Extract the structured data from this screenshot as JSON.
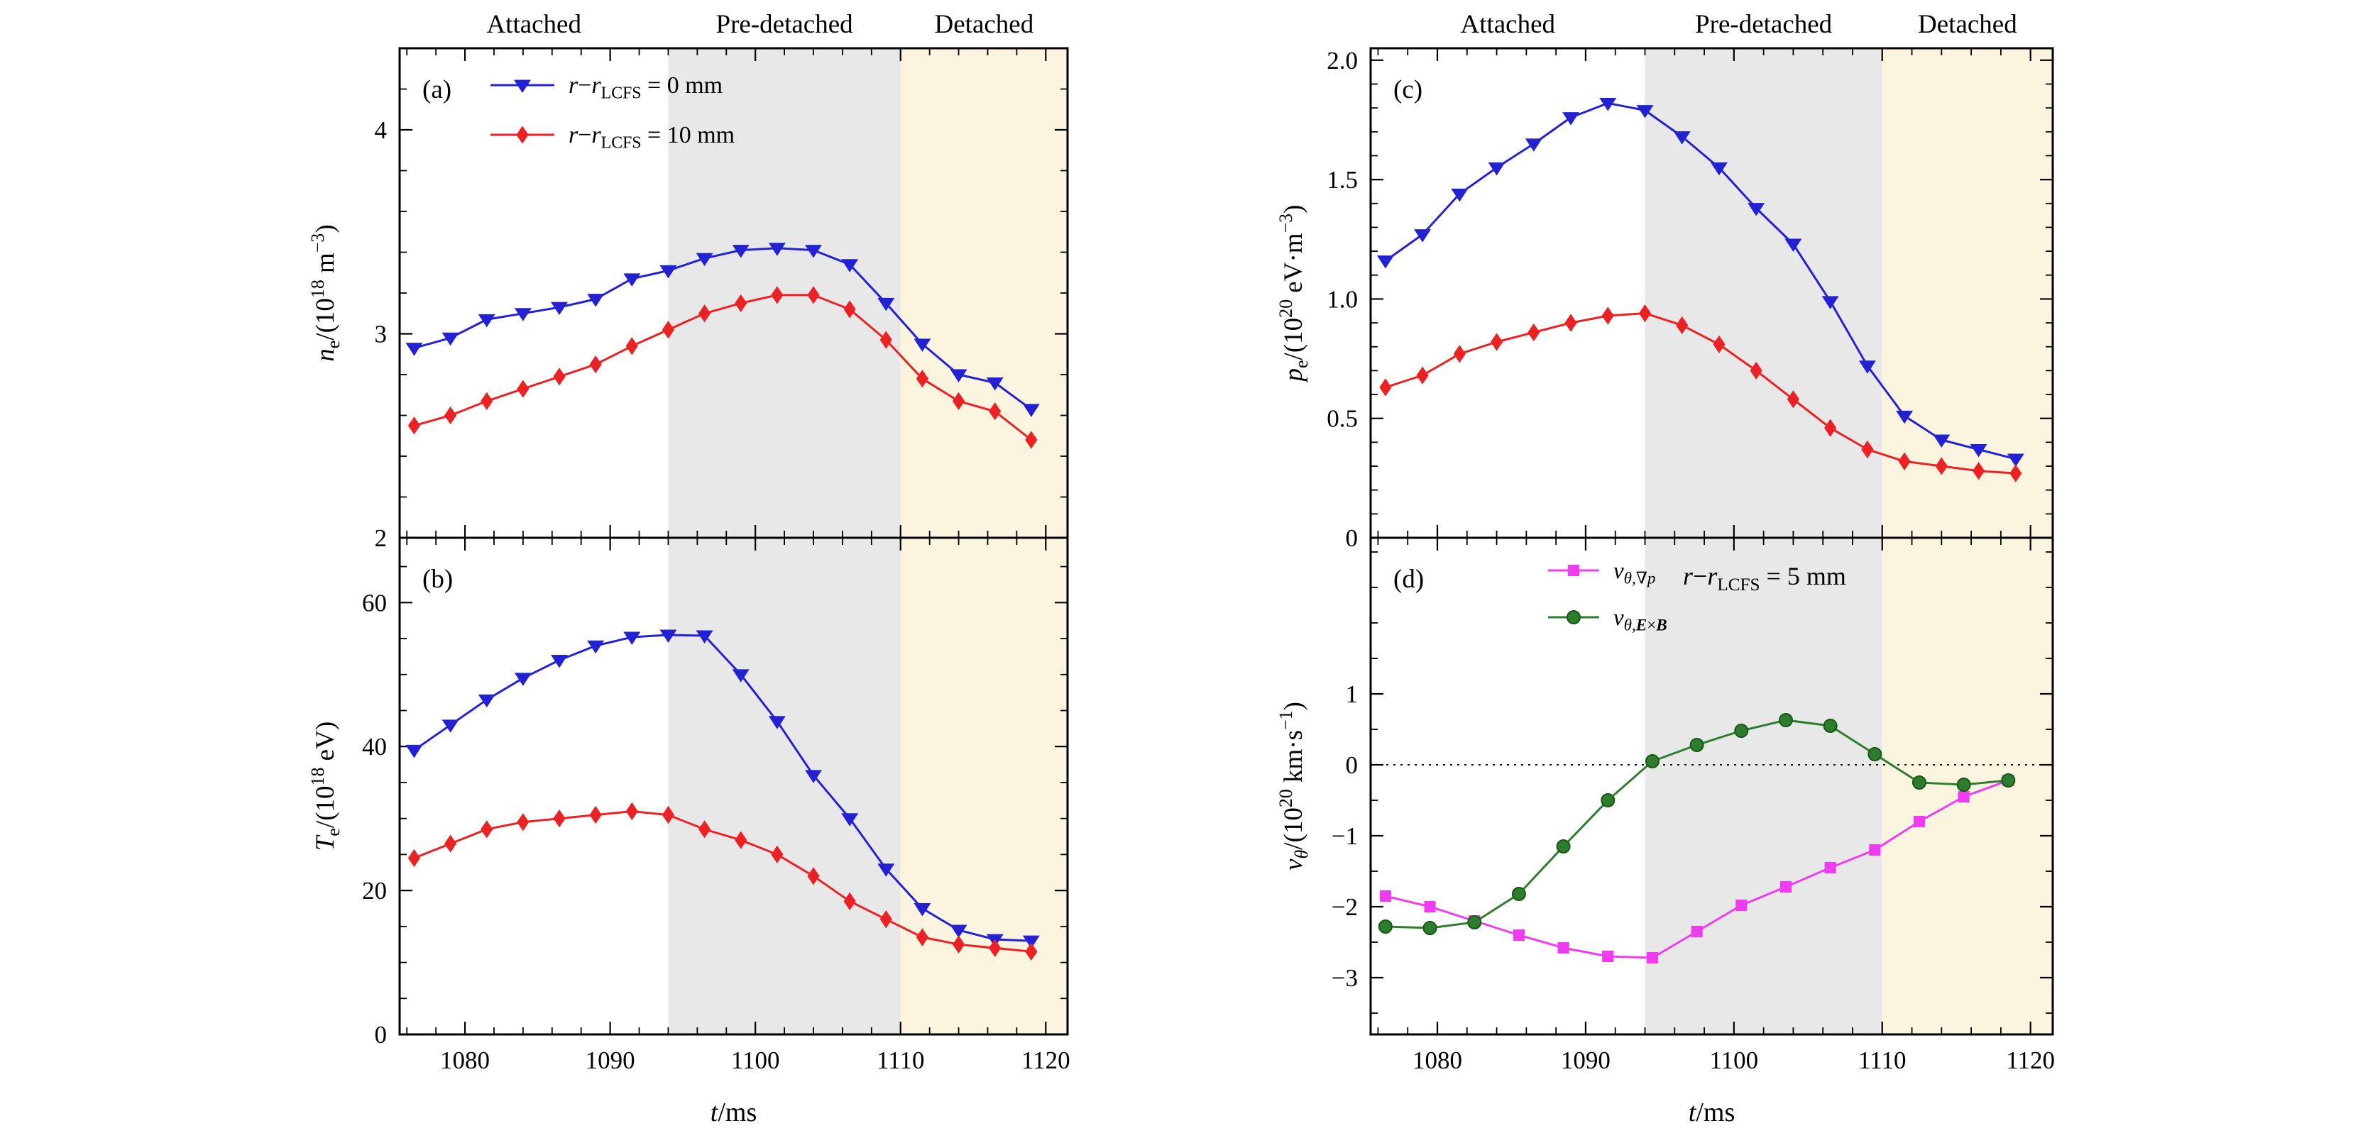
{
  "figure": {
    "phase_labels": [
      "Attached",
      "Pre-detached",
      "Detached"
    ],
    "regions": [
      {
        "name": "attached",
        "t0": 1075.5,
        "t1": 1094.0,
        "color": "#ffffff"
      },
      {
        "name": "pre-detached",
        "t0": 1094.0,
        "t1": 1110.0,
        "color": "#e8e8e8"
      },
      {
        "name": "detached",
        "t0": 1110.0,
        "t1": 1121.5,
        "color": "#fbf5df"
      }
    ],
    "x_axis": {
      "min": 1075.5,
      "max": 1121.5,
      "ticks": [
        1080,
        1090,
        1100,
        1110,
        1120
      ],
      "tick_labels": [
        "1080",
        "1090",
        "1100",
        "1110",
        "1120"
      ],
      "minor_step": 2,
      "label_text": "t/ms",
      "label_tokens": [
        {
          "t": "t",
          "i": true
        },
        {
          "t": "/ms"
        }
      ]
    }
  },
  "chart_data": [
    {
      "id": "a",
      "type": "line",
      "panel_label": "(a)",
      "ylabel_text": "n_e/(10^18 m^-3)",
      "ylabel_tokens": [
        {
          "t": "n",
          "i": true
        },
        {
          "t": "e",
          "pos": "sub"
        },
        {
          "t": "/(10"
        },
        {
          "t": "18",
          "pos": "sup"
        },
        {
          "t": " m"
        },
        {
          "t": "−3",
          "pos": "sup"
        },
        {
          "t": ")"
        }
      ],
      "ymin": 2,
      "ymax": 4.4,
      "yticks": [
        2,
        3,
        4
      ],
      "ytick_labels": [
        "2",
        "3",
        "4"
      ],
      "yminor_step": 0.2,
      "show_x_tick_labels": false,
      "zero_line": false,
      "legend": {
        "x_offset": 128,
        "row_y": [
          52,
          122
        ],
        "line_len": 90,
        "font": 34
      },
      "series": [
        {
          "name": "r-r_LCFS = 0 mm",
          "label_tokens": [
            {
              "t": "r",
              "i": true
            },
            {
              "t": "−"
            },
            {
              "t": "r",
              "i": true
            },
            {
              "t": "LCFS",
              "pos": "sub"
            },
            {
              "t": " = 0 mm"
            }
          ],
          "color": "#2222d4",
          "marker": "triangle-down",
          "marker_size": 12,
          "x": [
            1076.5,
            1079,
            1081.5,
            1084,
            1086.5,
            1089,
            1091.5,
            1094,
            1096.5,
            1099,
            1101.5,
            1104,
            1106.5,
            1109,
            1111.5,
            1114,
            1116.5,
            1119
          ],
          "y": [
            2.93,
            2.98,
            3.07,
            3.1,
            3.13,
            3.17,
            3.27,
            3.31,
            3.37,
            3.41,
            3.42,
            3.41,
            3.34,
            3.15,
            2.95,
            2.8,
            2.76,
            2.63
          ]
        },
        {
          "name": "r-r_LCFS = 10 mm",
          "label_tokens": [
            {
              "t": "r",
              "i": true
            },
            {
              "t": "−"
            },
            {
              "t": "r",
              "i": true
            },
            {
              "t": "LCFS",
              "pos": "sub"
            },
            {
              "t": " = 10 mm"
            }
          ],
          "color": "#ec2124",
          "marker": "diamond",
          "marker_size": 11,
          "x": [
            1076.5,
            1079,
            1081.5,
            1084,
            1086.5,
            1089,
            1091.5,
            1094,
            1096.5,
            1099,
            1101.5,
            1104,
            1106.5,
            1109,
            1111.5,
            1114,
            1116.5,
            1119
          ],
          "y": [
            2.55,
            2.6,
            2.67,
            2.73,
            2.79,
            2.85,
            2.94,
            3.02,
            3.1,
            3.15,
            3.19,
            3.19,
            3.12,
            2.97,
            2.78,
            2.67,
            2.62,
            2.48
          ]
        }
      ]
    },
    {
      "id": "b",
      "type": "line",
      "panel_label": "(b)",
      "ylabel_text": "T_e/(10^18 eV)",
      "ylabel_tokens": [
        {
          "t": "T",
          "i": true
        },
        {
          "t": "e",
          "pos": "sub"
        },
        {
          "t": "/(10"
        },
        {
          "t": "18",
          "pos": "sup"
        },
        {
          "t": " eV)"
        }
      ],
      "ymin": 0,
      "ymax": 69,
      "yticks": [
        0,
        20,
        40,
        60
      ],
      "ytick_labels": [
        "0",
        "20",
        "40",
        "60"
      ],
      "yminor_step": 5,
      "show_x_tick_labels": true,
      "zero_line": false,
      "legend": null,
      "series": [
        {
          "name": "r-r_LCFS = 0 mm",
          "color": "#2222d4",
          "marker": "triangle-down",
          "marker_size": 12,
          "x": [
            1076.5,
            1079,
            1081.5,
            1084,
            1086.5,
            1089,
            1091.5,
            1094,
            1096.5,
            1099,
            1101.5,
            1104,
            1106.5,
            1109,
            1111.5,
            1114,
            1116.5,
            1119
          ],
          "y": [
            39.5,
            43.0,
            46.5,
            49.5,
            52.0,
            54.0,
            55.2,
            55.5,
            55.4,
            50.0,
            43.5,
            36.0,
            30.0,
            23.0,
            17.5,
            14.5,
            13.2,
            13.0
          ]
        },
        {
          "name": "r-r_LCFS = 10 mm",
          "color": "#ec2124",
          "marker": "diamond",
          "marker_size": 11,
          "x": [
            1076.5,
            1079,
            1081.5,
            1084,
            1086.5,
            1089,
            1091.5,
            1094,
            1096.5,
            1099,
            1101.5,
            1104,
            1106.5,
            1109,
            1111.5,
            1114,
            1116.5,
            1119
          ],
          "y": [
            24.5,
            26.5,
            28.5,
            29.5,
            30.0,
            30.5,
            31.0,
            30.5,
            28.5,
            27.0,
            25.0,
            22.0,
            18.5,
            16.0,
            13.5,
            12.5,
            12.0,
            11.5
          ]
        }
      ]
    },
    {
      "id": "c",
      "type": "line",
      "panel_label": "(c)",
      "ylabel_text": "p_e/(10^20 eV·m^-3)",
      "ylabel_tokens": [
        {
          "t": "p",
          "i": true
        },
        {
          "t": "e",
          "pos": "sub"
        },
        {
          "t": "/(10"
        },
        {
          "t": "20",
          "pos": "sup"
        },
        {
          "t": " eV·m"
        },
        {
          "t": "−3",
          "pos": "sup"
        },
        {
          "t": ")"
        }
      ],
      "ymin": 0,
      "ymax": 2.05,
      "yticks": [
        0,
        0.5,
        1.0,
        1.5,
        2.0
      ],
      "ytick_labels": [
        "0",
        "0.5",
        "1.0",
        "1.5",
        "2.0"
      ],
      "yminor_step": 0.1,
      "show_x_tick_labels": false,
      "zero_line": false,
      "legend": null,
      "series": [
        {
          "name": "r-r_LCFS = 0 mm",
          "color": "#2222d4",
          "marker": "triangle-down",
          "marker_size": 12,
          "x": [
            1076.5,
            1079,
            1081.5,
            1084,
            1086.5,
            1089,
            1091.5,
            1094,
            1096.5,
            1099,
            1101.5,
            1104,
            1106.5,
            1109,
            1111.5,
            1114,
            1116.5,
            1119
          ],
          "y": [
            1.16,
            1.27,
            1.44,
            1.55,
            1.65,
            1.76,
            1.82,
            1.79,
            1.68,
            1.55,
            1.38,
            1.23,
            0.99,
            0.72,
            0.51,
            0.41,
            0.37,
            0.33
          ]
        },
        {
          "name": "r-r_LCFS = 10 mm",
          "color": "#ec2124",
          "marker": "diamond",
          "marker_size": 11,
          "x": [
            1076.5,
            1079,
            1081.5,
            1084,
            1086.5,
            1089,
            1091.5,
            1094,
            1096.5,
            1099,
            1101.5,
            1104,
            1106.5,
            1109,
            1111.5,
            1114,
            1116.5,
            1119
          ],
          "y": [
            0.63,
            0.68,
            0.77,
            0.82,
            0.86,
            0.9,
            0.93,
            0.94,
            0.89,
            0.81,
            0.7,
            0.58,
            0.46,
            0.37,
            0.32,
            0.3,
            0.28,
            0.27
          ]
        }
      ]
    },
    {
      "id": "d",
      "type": "line",
      "panel_label": "(d)",
      "ylabel_text": "v_theta/(10^20 km·s^-1)",
      "ylabel_tokens": [
        {
          "t": "v",
          "i": true
        },
        {
          "t": "θ",
          "pos": "sub",
          "i": true
        },
        {
          "t": "/(10"
        },
        {
          "t": "20",
          "pos": "sup"
        },
        {
          "t": " km·s"
        },
        {
          "t": "−1",
          "pos": "sup"
        },
        {
          "t": ")"
        }
      ],
      "ymin": -3.8,
      "ymax": 3.2,
      "yticks": [
        -3,
        -2,
        -1,
        0,
        1
      ],
      "ytick_labels": [
        "−3",
        "−2",
        "−1",
        "0",
        "1"
      ],
      "yminor_step": 0.5,
      "show_x_tick_labels": true,
      "zero_line": true,
      "legend": {
        "x_offset": 250,
        "row_y": [
          46,
          112
        ],
        "line_len": 72,
        "font": 33
      },
      "annotation": {
        "text": "r-r_LCFS = 5 mm",
        "tokens": [
          {
            "t": "r",
            "i": true
          },
          {
            "t": "−"
          },
          {
            "t": "r",
            "i": true
          },
          {
            "t": "LCFS",
            "pos": "sub"
          },
          {
            "t": " = 5 mm"
          }
        ],
        "x_offset": 440,
        "y_offset": 66
      },
      "series": [
        {
          "name": "v_theta,grad-p",
          "label_tokens": [
            {
              "t": "v",
              "i": true
            },
            {
              "t": "θ,∇p",
              "pos": "sub",
              "i": true
            }
          ],
          "color": "#ef3cef",
          "marker": "square",
          "marker_size": 9.5,
          "x": [
            1076.5,
            1079.5,
            1082.5,
            1085.5,
            1088.5,
            1091.5,
            1094.5,
            1097.5,
            1100.5,
            1103.5,
            1106.5,
            1109.5,
            1112.5,
            1115.5,
            1118.5
          ],
          "y": [
            -1.85,
            -2.0,
            -2.2,
            -2.4,
            -2.58,
            -2.7,
            -2.72,
            -2.35,
            -1.98,
            -1.72,
            -1.45,
            -1.2,
            -0.8,
            -0.45,
            -0.22
          ]
        },
        {
          "name": "v_theta,ExB",
          "label_tokens": [
            {
              "t": "v",
              "i": true
            },
            {
              "t": "θ,",
              "pos": "sub",
              "i": true
            },
            {
              "t": "E",
              "pos": "sub",
              "i": true,
              "b": true
            },
            {
              "t": "×",
              "pos": "sub"
            },
            {
              "t": "B",
              "pos": "sub",
              "i": true,
              "b": true
            }
          ],
          "color": "#2e7d2e",
          "marker": "circle",
          "marker_size": 10,
          "edge": "#175717",
          "x": [
            1076.5,
            1079.5,
            1082.5,
            1085.5,
            1088.5,
            1091.5,
            1094.5,
            1097.5,
            1100.5,
            1103.5,
            1106.5,
            1109.5,
            1112.5,
            1115.5,
            1118.5
          ],
          "y": [
            -2.28,
            -2.3,
            -2.22,
            -1.82,
            -1.15,
            -0.5,
            0.05,
            0.28,
            0.48,
            0.63,
            0.55,
            0.15,
            -0.25,
            -0.28,
            -0.22
          ]
        }
      ]
    }
  ]
}
